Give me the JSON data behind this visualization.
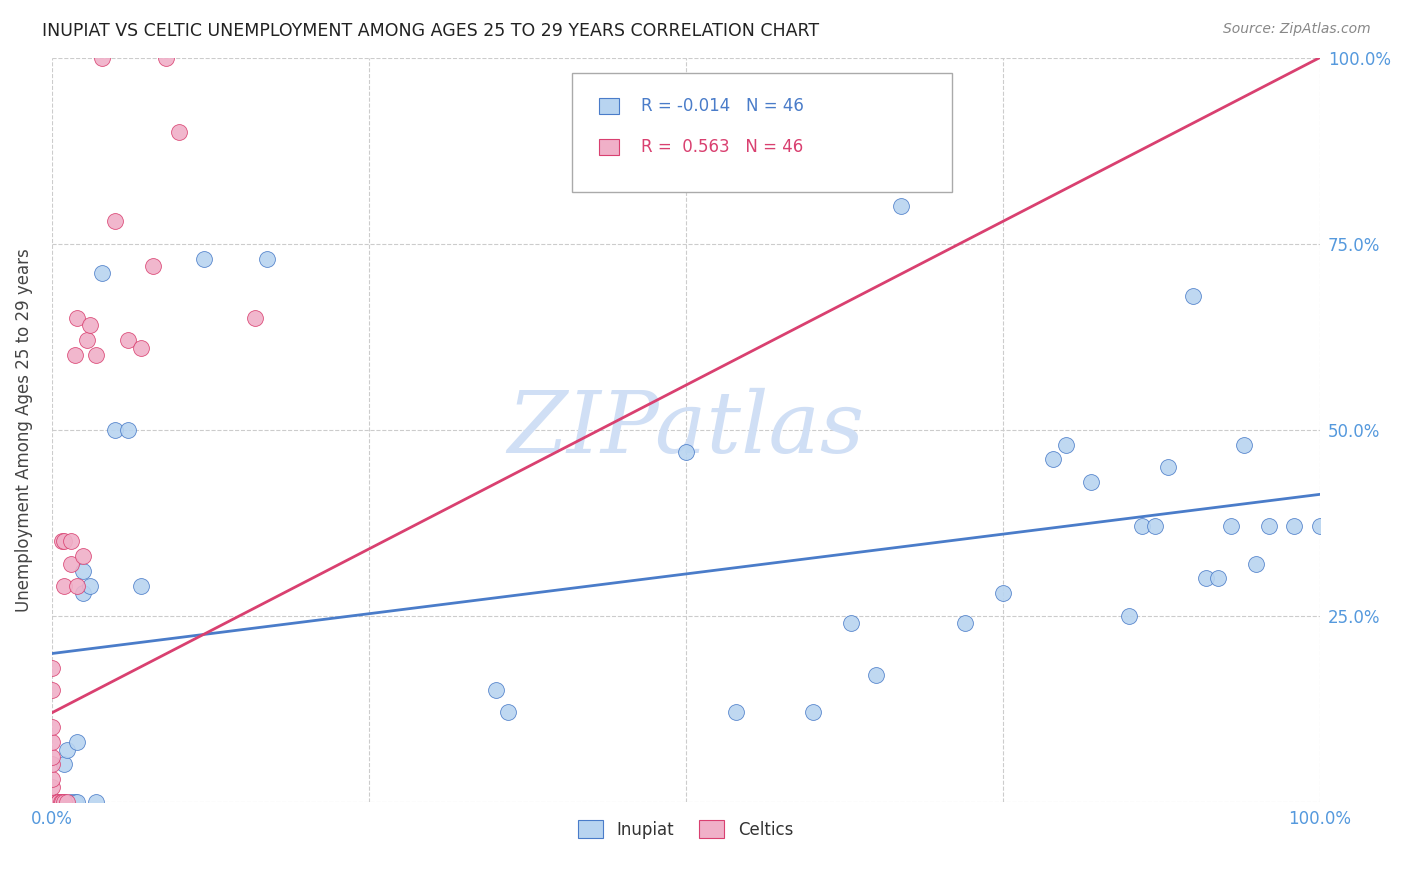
{
  "title": "INUPIAT VS CELTIC UNEMPLOYMENT AMONG AGES 25 TO 29 YEARS CORRELATION CHART",
  "source": "Source: ZipAtlas.com",
  "ylabel": "Unemployment Among Ages 25 to 29 years",
  "inupiat_color": "#b8d4f0",
  "celtics_color": "#f0b0c8",
  "inupiat_line_color": "#4a7cc9",
  "celtics_line_color": "#d94070",
  "watermark_color": "#d0dff5",
  "tick_color": "#5599dd",
  "inupiat_x": [
    0.0,
    0.005,
    0.008,
    0.01,
    0.01,
    0.012,
    0.015,
    0.018,
    0.02,
    0.02,
    0.025,
    0.025,
    0.03,
    0.035,
    0.04,
    0.05,
    0.06,
    0.07,
    0.12,
    0.17,
    0.35,
    0.36,
    0.5,
    0.54,
    0.6,
    0.63,
    0.65,
    0.67,
    0.72,
    0.75,
    0.79,
    0.8,
    0.82,
    0.85,
    0.86,
    0.87,
    0.88,
    0.9,
    0.91,
    0.92,
    0.93,
    0.94,
    0.95,
    0.96,
    0.98,
    1.0
  ],
  "inupiat_y": [
    0.0,
    0.0,
    0.0,
    0.0,
    0.05,
    0.07,
    0.0,
    0.0,
    0.0,
    0.08,
    0.28,
    0.31,
    0.29,
    0.0,
    0.71,
    0.5,
    0.5,
    0.29,
    0.73,
    0.73,
    0.15,
    0.12,
    0.47,
    0.12,
    0.12,
    0.24,
    0.17,
    0.8,
    0.24,
    0.28,
    0.46,
    0.48,
    0.43,
    0.25,
    0.37,
    0.37,
    0.45,
    0.68,
    0.3,
    0.3,
    0.37,
    0.48,
    0.32,
    0.37,
    0.37,
    0.37
  ],
  "celtics_x": [
    0.0,
    0.0,
    0.0,
    0.0,
    0.0,
    0.0,
    0.0,
    0.0,
    0.0,
    0.0,
    0.0,
    0.0,
    0.0,
    0.0,
    0.0,
    0.0,
    0.0,
    0.0,
    0.0,
    0.0,
    0.005,
    0.005,
    0.007,
    0.008,
    0.008,
    0.01,
    0.01,
    0.01,
    0.012,
    0.015,
    0.015,
    0.018,
    0.02,
    0.02,
    0.025,
    0.028,
    0.03,
    0.035,
    0.04,
    0.05,
    0.06,
    0.07,
    0.08,
    0.09,
    0.1,
    0.16
  ],
  "celtics_y": [
    0.0,
    0.0,
    0.0,
    0.0,
    0.0,
    0.0,
    0.0,
    0.0,
    0.0,
    0.0,
    0.0,
    0.0,
    0.02,
    0.03,
    0.05,
    0.06,
    0.08,
    0.1,
    0.15,
    0.18,
    0.0,
    0.0,
    0.0,
    0.0,
    0.35,
    0.0,
    0.29,
    0.35,
    0.0,
    0.32,
    0.35,
    0.6,
    0.29,
    0.65,
    0.33,
    0.62,
    0.64,
    0.6,
    1.0,
    0.78,
    0.62,
    0.61,
    0.72,
    1.0,
    0.9,
    0.65
  ],
  "xlim": [
    0.0,
    1.0
  ],
  "ylim": [
    0.0,
    1.0
  ],
  "xticks": [
    0.0,
    0.25,
    0.5,
    0.75,
    1.0
  ],
  "yticks": [
    0.0,
    0.25,
    0.5,
    0.75,
    1.0
  ],
  "xticklabels_show": [
    "0.0%",
    "100.0%"
  ],
  "xticklabels_pos": [
    0.0,
    1.0
  ],
  "yticklabels": [
    "0.0%",
    "25.0%",
    "50.0%",
    "75.0%",
    "100.0%"
  ]
}
